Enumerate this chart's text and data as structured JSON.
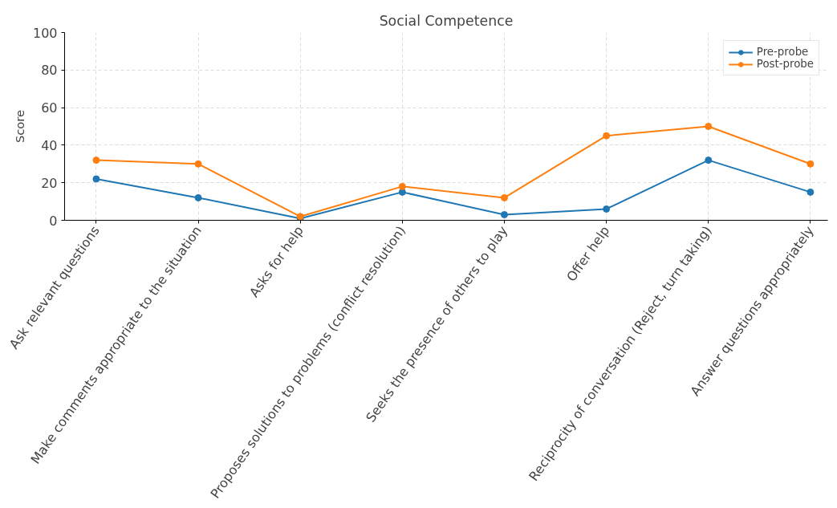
{
  "chart_data": {
    "type": "line",
    "title": "Social Competence",
    "ylabel": "Score",
    "categories": [
      "Ask relevant questions",
      "Make comments appropriate to the situation",
      "Asks for help",
      "Proposes solutions to problems (conflict resolution)",
      "Seeks the presence of others to play",
      "Offer help",
      "Reciprocity of conversation (Reject, turn taking)",
      "Answer questions appropriately"
    ],
    "series": [
      {
        "name": "Pre-probe",
        "color": "#1f77b4",
        "values": [
          22,
          12,
          1,
          15,
          3,
          6,
          32,
          15
        ]
      },
      {
        "name": "Post-probe",
        "color": "#ff7f0e",
        "values": [
          32,
          30,
          2,
          18,
          12,
          45,
          50,
          30
        ]
      }
    ],
    "ylim": [
      0,
      100
    ],
    "yticks": [
      0,
      20,
      40,
      60,
      80,
      100
    ],
    "grid": true,
    "legend": "top right",
    "marker": "circle",
    "line_style": "solid"
  }
}
